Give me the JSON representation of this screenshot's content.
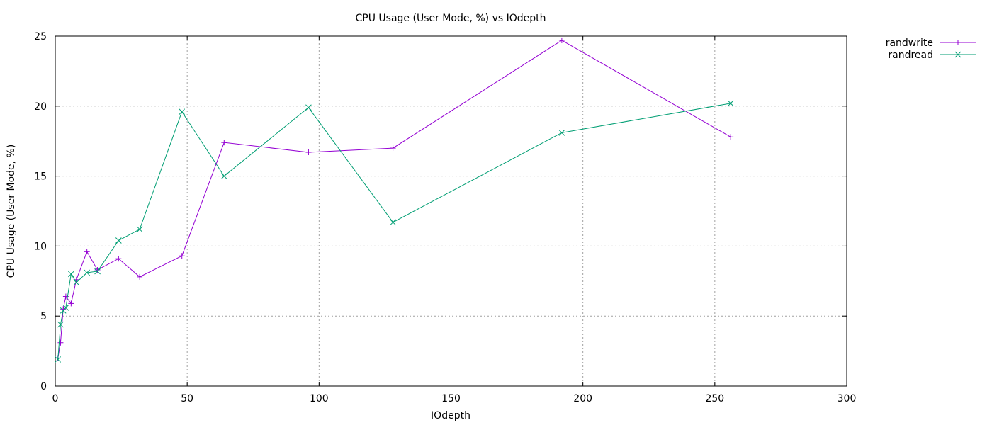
{
  "chart_data": {
    "type": "line",
    "title": "CPU Usage (User Mode, %) vs IOdepth",
    "xlabel": "IOdepth",
    "ylabel": "CPU Usage (User Mode, %)",
    "xlim": [
      0,
      300
    ],
    "ylim": [
      0,
      25
    ],
    "xticks": [
      0,
      50,
      100,
      150,
      200,
      250,
      300
    ],
    "yticks": [
      0,
      5,
      10,
      15,
      20,
      25
    ],
    "grid": true,
    "legend_position": "outside-top-right",
    "series": [
      {
        "name": "randwrite",
        "color": "#9400d3",
        "marker": "plus",
        "points": [
          [
            1,
            2.0
          ],
          [
            2,
            3.1
          ],
          [
            3,
            5.5
          ],
          [
            4,
            6.4
          ],
          [
            6,
            5.9
          ],
          [
            8,
            7.6
          ],
          [
            12,
            9.6
          ],
          [
            16,
            8.3
          ],
          [
            24,
            9.1
          ],
          [
            32,
            7.8
          ],
          [
            48,
            9.3
          ],
          [
            64,
            17.4
          ],
          [
            96,
            16.7
          ],
          [
            128,
            17.0
          ],
          [
            192,
            24.7
          ],
          [
            256,
            17.8
          ]
        ]
      },
      {
        "name": "randread",
        "color": "#009e73",
        "marker": "cross",
        "points": [
          [
            1,
            1.9
          ],
          [
            2,
            4.4
          ],
          [
            3,
            5.4
          ],
          [
            4,
            5.6
          ],
          [
            6,
            8.0
          ],
          [
            8,
            7.4
          ],
          [
            12,
            8.1
          ],
          [
            16,
            8.2
          ],
          [
            24,
            10.4
          ],
          [
            32,
            11.2
          ],
          [
            48,
            19.6
          ],
          [
            64,
            15.0
          ],
          [
            96,
            19.9
          ],
          [
            128,
            11.7
          ],
          [
            192,
            18.1
          ],
          [
            256,
            20.2
          ]
        ]
      }
    ]
  }
}
